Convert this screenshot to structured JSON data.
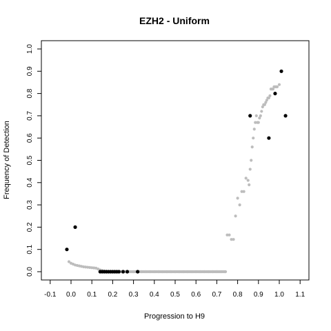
{
  "chart_data": {
    "type": "scatter",
    "title": "EZH2 - Uniform",
    "xlabel": "Progression to H9",
    "ylabel": "Frequency of Detection",
    "xlim": [
      -0.15,
      1.15
    ],
    "ylim": [
      -0.03,
      1.04
    ],
    "grid": false,
    "legend": "none",
    "x_ticks": [
      -0.1,
      0.0,
      0.1,
      0.2,
      0.3,
      0.4,
      0.5,
      0.6,
      0.7,
      0.8,
      0.9,
      1.0,
      1.1
    ],
    "x_tick_labels": [
      "-0.1",
      "0.0",
      "0.1",
      "0.2",
      "0.3",
      "0.4",
      "0.5",
      "0.6",
      "0.7",
      "0.8",
      "0.9",
      "1.0",
      "1.1"
    ],
    "y_ticks": [
      0.0,
      0.1,
      0.2,
      0.3,
      0.4,
      0.5,
      0.6,
      0.7,
      0.8,
      0.9,
      1.0
    ],
    "y_tick_labels": [
      "0.0",
      "0.1",
      "0.2",
      "0.3",
      "0.4",
      "0.5",
      "0.6",
      "0.7",
      "0.8",
      "0.9",
      "1.0"
    ],
    "colors": {
      "observed": "#000000",
      "fitted": "#bdbdbd",
      "axis": "#000000"
    },
    "series": [
      {
        "role": "fitted",
        "x": [
          -0.01,
          0.0,
          0.01,
          0.02,
          0.03,
          0.04,
          0.05,
          0.06,
          0.07,
          0.08,
          0.09,
          0.1,
          0.11,
          0.12,
          0.13,
          0.14,
          0.15,
          0.16,
          0.17,
          0.18,
          0.19,
          0.2,
          0.22,
          0.24,
          0.26,
          0.28,
          0.3,
          0.32,
          0.34,
          0.36,
          0.38,
          0.4,
          0.42,
          0.44,
          0.46,
          0.48,
          0.5,
          0.52,
          0.54,
          0.56,
          0.58,
          0.6,
          0.62,
          0.64,
          0.66,
          0.68,
          0.7,
          0.72,
          0.74,
          0.75,
          0.76,
          0.77,
          0.78,
          0.79,
          0.8,
          0.81,
          0.82,
          0.83,
          0.84,
          0.85,
          0.855,
          0.86,
          0.865,
          0.87,
          0.875,
          0.88,
          0.885,
          0.89,
          0.895,
          0.9,
          0.905,
          0.91,
          0.915,
          0.92,
          0.925,
          0.93,
          0.935,
          0.94,
          0.945,
          0.95,
          0.955,
          0.96,
          0.965,
          0.97,
          0.975,
          0.98,
          0.985,
          0.99,
          1.0
        ],
        "y": [
          0.045,
          0.038,
          0.034,
          0.03,
          0.028,
          0.026,
          0.024,
          0.022,
          0.021,
          0.02,
          0.019,
          0.018,
          0.017,
          0.016,
          0.012,
          0.008,
          0.005,
          0.003,
          0.002,
          0.001,
          0,
          0,
          0,
          0,
          0,
          0,
          0,
          0,
          0,
          0,
          0,
          0,
          0,
          0,
          0,
          0,
          0,
          0,
          0,
          0,
          0,
          0,
          0,
          0,
          0,
          0,
          0,
          0,
          0,
          0.165,
          0.165,
          0.145,
          0.145,
          0.25,
          0.33,
          0.3,
          0.36,
          0.36,
          0.42,
          0.41,
          0.39,
          0.46,
          0.5,
          0.56,
          0.6,
          0.64,
          0.67,
          0.7,
          0.67,
          0.67,
          0.69,
          0.7,
          0.72,
          0.74,
          0.75,
          0.75,
          0.76,
          0.77,
          0.78,
          0.78,
          0.79,
          0.82,
          0.82,
          0.82,
          0.83,
          0.83,
          0.83,
          0.83,
          0.84
        ]
      },
      {
        "role": "observed",
        "x": [
          -0.02,
          0.02,
          0.14,
          0.15,
          0.16,
          0.17,
          0.18,
          0.19,
          0.2,
          0.21,
          0.22,
          0.23,
          0.25,
          0.27,
          0.32,
          0.86,
          0.95,
          0.98,
          1.01,
          1.03
        ],
        "y": [
          0.1,
          0.2,
          0,
          0,
          0,
          0,
          0,
          0,
          0,
          0,
          0,
          0,
          0,
          0,
          0,
          0.7,
          0.6,
          0.8,
          0.9,
          0.7
        ]
      }
    ]
  }
}
